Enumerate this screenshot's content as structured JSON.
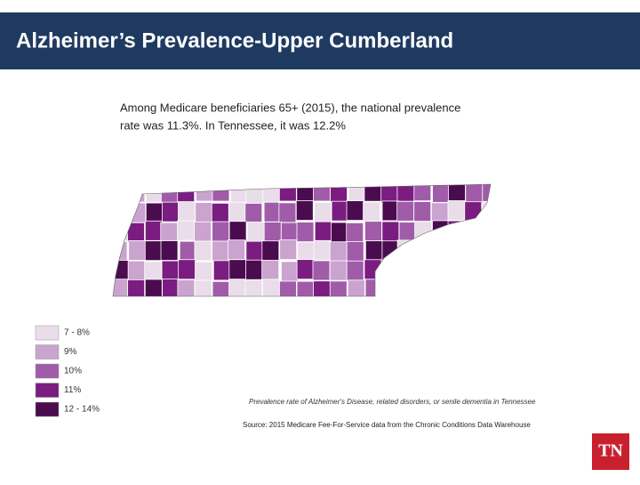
{
  "header": {
    "title": "Alzheimer’s Prevalence-Upper Cumberland"
  },
  "intro": [
    "Among Medicare beneficiaries 65+ (2015), the national prevalence",
    "rate was 11.3%. In Tennessee, it was 12.2%"
  ],
  "legend": {
    "items": [
      {
        "label": "7 - 8%",
        "color": "#e9dde9"
      },
      {
        "label": "9%",
        "color": "#caa3cf"
      },
      {
        "label": "10%",
        "color": "#a05ca9"
      },
      {
        "label": "11%",
        "color": "#7b1c80"
      },
      {
        "label": "12 - 14%",
        "color": "#4a0b4f"
      }
    ]
  },
  "caption": "Prevalence rate of Alzheimer's Disease, related disorders, or senile dementia in Tennessee",
  "source": "Source: 2015 Medicare Fee-For-Service data from the Chronic Conditions Data Warehouse",
  "logo": "TN"
}
